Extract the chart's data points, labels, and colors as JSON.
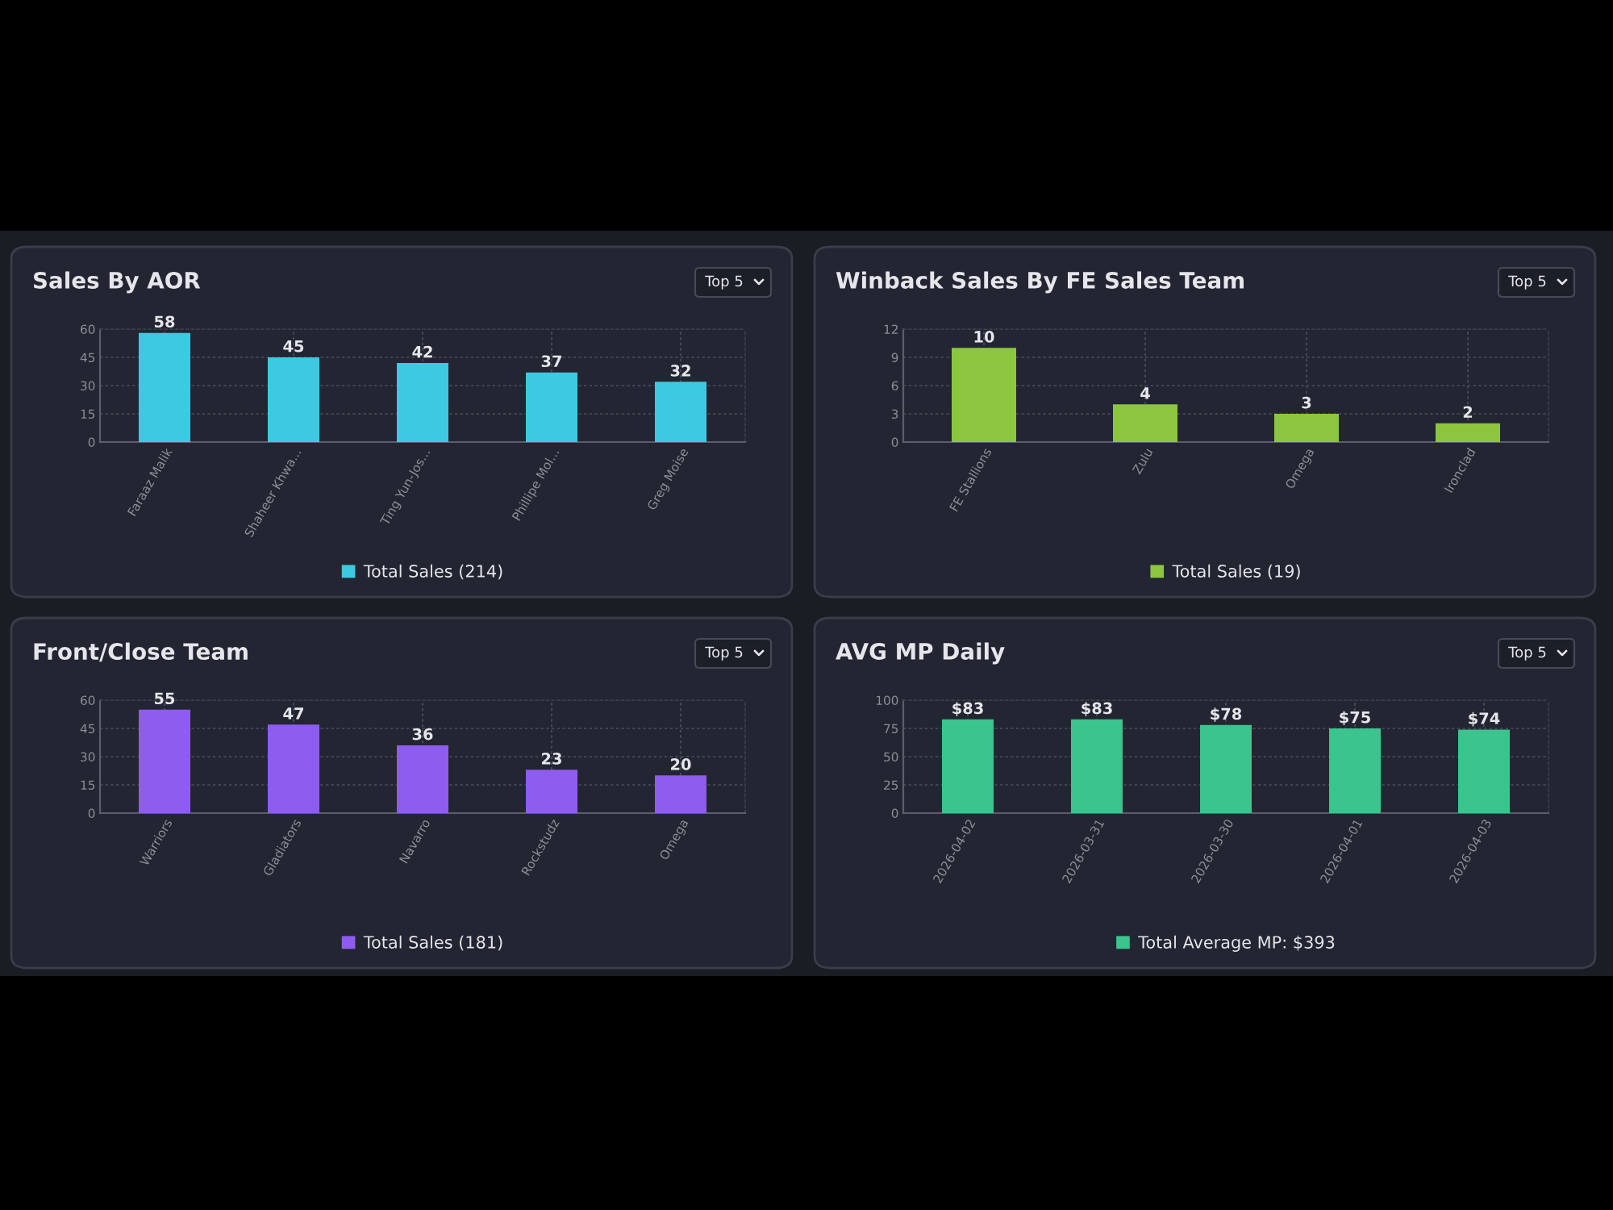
{
  "chart_data": [
    {
      "type": "bar",
      "title": "Sales By AOR",
      "annotations": [
        "Top 5"
      ],
      "categories": [
        "Faraaz Malik",
        "Shaheer Khwa...",
        "Ting Yun-Jos...",
        "Phillipe Mol...",
        "Greg Moise"
      ],
      "series": [
        {
          "name": "Total Sales (214)",
          "color": "#3ec9e2",
          "values": [
            58,
            45,
            42,
            37,
            32
          ]
        }
      ],
      "ylim": [
        0,
        60
      ],
      "yticks": [
        0,
        15,
        30,
        45,
        60
      ],
      "grid": true,
      "legend": "bottom",
      "data_labels": true
    },
    {
      "type": "bar",
      "title": "Winback Sales By FE Sales Team",
      "annotations": [
        "Top 5"
      ],
      "categories": [
        "FE Stallions",
        "Zulu",
        "Omega",
        "Ironclad"
      ],
      "series": [
        {
          "name": "Total Sales (19)",
          "color": "#8cc63f",
          "values": [
            10,
            4,
            3,
            2
          ]
        }
      ],
      "ylim": [
        0,
        12
      ],
      "yticks": [
        0,
        3,
        6,
        9,
        12
      ],
      "grid": true,
      "legend": "bottom",
      "data_labels": true
    },
    {
      "type": "bar",
      "title": "Front/Close Team",
      "annotations": [
        "Top 5"
      ],
      "categories": [
        "Warriors",
        "Gladiators",
        "Navarro",
        "Rockstudz",
        "Omega"
      ],
      "series": [
        {
          "name": "Total Sales (181)",
          "color": "#8f5cf0",
          "values": [
            55,
            47,
            36,
            23,
            20
          ]
        }
      ],
      "ylim": [
        0,
        60
      ],
      "yticks": [
        0,
        15,
        30,
        45,
        60
      ],
      "grid": true,
      "legend": "bottom",
      "data_labels": true
    },
    {
      "type": "bar",
      "title": "AVG MP Daily",
      "annotations": [
        "Top 5"
      ],
      "categories": [
        "2026-04-02",
        "2026-03-31",
        "2026-03-30",
        "2026-04-01",
        "2026-04-03"
      ],
      "series": [
        {
          "name": "Total Average MP: $393",
          "color": "#3cc48e",
          "values": [
            83,
            83,
            78,
            75,
            74
          ],
          "value_labels": [
            "$83",
            "$83",
            "$78",
            "$75",
            "$74"
          ]
        }
      ],
      "ylim": [
        0,
        100
      ],
      "yticks": [
        0,
        25,
        50,
        75,
        100
      ],
      "grid": true,
      "legend": "bottom"
    }
  ]
}
